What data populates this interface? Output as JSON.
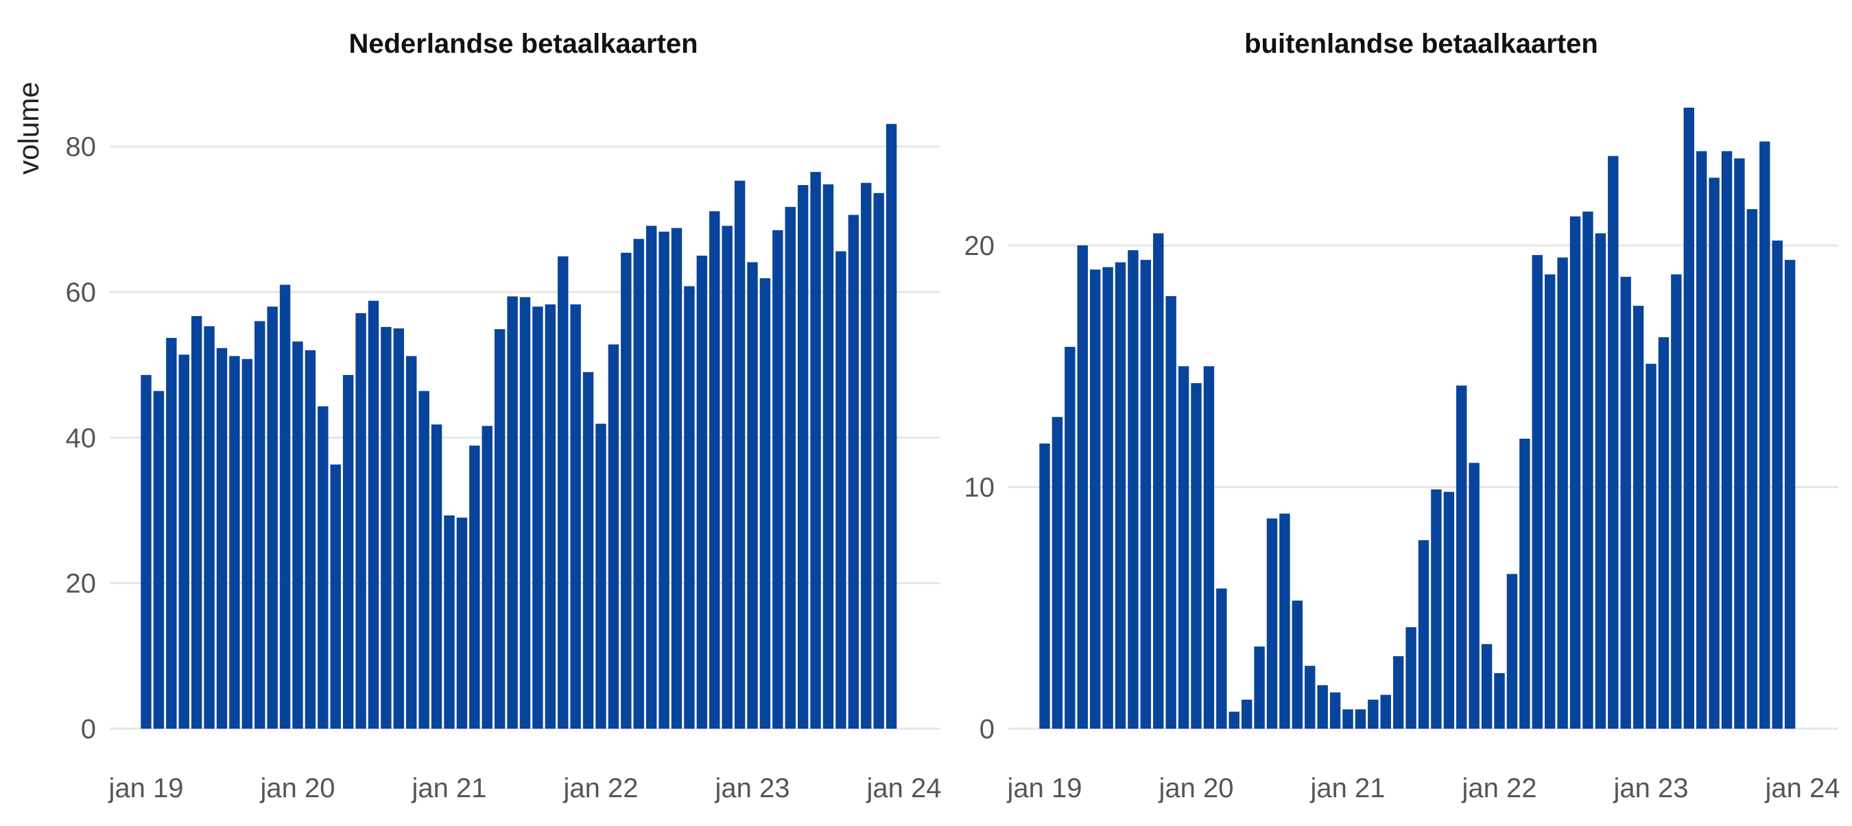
{
  "colors": {
    "bar": "#08449c",
    "grid": "#e6e6e6",
    "tick_text": "#555555",
    "title_text": "#111111"
  },
  "ylabel": "volume",
  "chart_data": [
    {
      "type": "bar",
      "title": "Nederlandse betaalkaarten",
      "ylabel": "volume",
      "grid": true,
      "x_ticks": [
        "jan 19",
        "jan 20",
        "jan 21",
        "jan 22",
        "jan 23",
        "jan 24"
      ],
      "y_ticks": [
        0,
        20,
        40,
        60,
        80
      ],
      "ylim": [
        0,
        86
      ],
      "start_month": "jan 19",
      "values": [
        48.6,
        46.4,
        53.7,
        51.4,
        56.7,
        55.3,
        52.3,
        51.2,
        50.8,
        56.0,
        58.0,
        61.0,
        53.2,
        52.0,
        44.3,
        36.3,
        48.6,
        57.1,
        58.8,
        55.2,
        55.0,
        51.2,
        46.4,
        41.8,
        29.3,
        29.0,
        38.9,
        41.6,
        54.9,
        59.4,
        59.3,
        58.0,
        58.3,
        64.9,
        58.3,
        49.0,
        41.9,
        52.8,
        65.4,
        67.3,
        69.1,
        68.3,
        68.8,
        60.8,
        65.0,
        71.1,
        69.1,
        75.3,
        64.1,
        61.9,
        68.5,
        71.7,
        74.7,
        76.5,
        74.8,
        65.6,
        70.6,
        75.0,
        73.6,
        83.1
      ]
    },
    {
      "type": "bar",
      "title": "buitenlandse betaalkaarten",
      "ylabel": "",
      "grid": true,
      "x_ticks": [
        "jan 19",
        "jan 20",
        "jan 21",
        "jan 22",
        "jan 23",
        "jan 24"
      ],
      "y_ticks": [
        0,
        10,
        20
      ],
      "ylim": [
        0,
        25.9
      ],
      "start_month": "jan 19",
      "values": [
        11.8,
        12.9,
        15.8,
        20.0,
        19.0,
        19.1,
        19.3,
        19.8,
        19.4,
        20.5,
        17.9,
        15.0,
        14.3,
        15.0,
        5.8,
        0.7,
        1.2,
        3.4,
        8.7,
        8.9,
        5.3,
        2.6,
        1.8,
        1.5,
        0.8,
        0.8,
        1.2,
        1.4,
        3.0,
        4.2,
        7.8,
        9.9,
        9.8,
        14.2,
        11.0,
        3.5,
        2.3,
        6.4,
        12.0,
        19.6,
        18.8,
        19.5,
        21.2,
        21.4,
        20.5,
        23.7,
        18.7,
        17.5,
        15.1,
        16.2,
        18.8,
        25.7,
        23.9,
        22.8,
        23.9,
        23.6,
        21.5,
        24.3,
        20.2,
        19.4
      ]
    }
  ]
}
